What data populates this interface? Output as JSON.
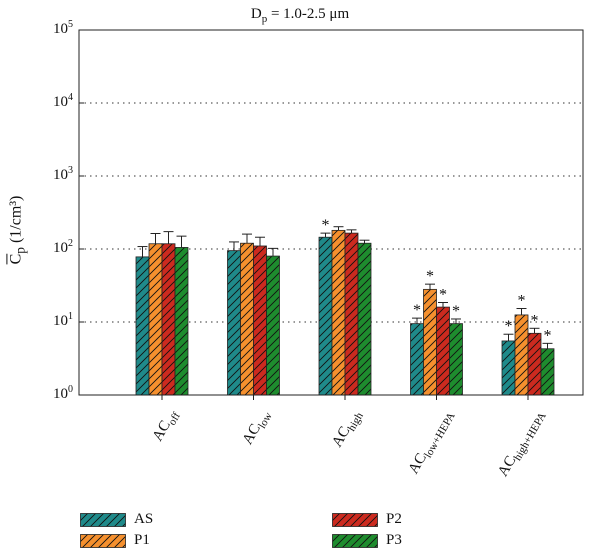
{
  "chart_data": {
    "type": "bar",
    "title": {
      "main": "D",
      "sub": "p",
      "rest": " = 1.0-2.5 μm"
    },
    "ylabel": {
      "over": "C",
      "sub": "p",
      "rest": " (1/cm³)"
    },
    "yscale": "log",
    "ylim": [
      1,
      100000
    ],
    "yticks": [
      {
        "base": "10",
        "exp": "0",
        "value": 1
      },
      {
        "base": "10",
        "exp": "1",
        "value": 10
      },
      {
        "base": "10",
        "exp": "2",
        "value": 100
      },
      {
        "base": "10",
        "exp": "3",
        "value": 1000
      },
      {
        "base": "10",
        "exp": "4",
        "value": 10000
      },
      {
        "base": "10",
        "exp": "5",
        "value": 100000
      }
    ],
    "grid": "horizontal dotted at decades",
    "categories": [
      {
        "main": "AC",
        "sub": "off"
      },
      {
        "main": "AC",
        "sub": "low"
      },
      {
        "main": "AC",
        "sub": "high"
      },
      {
        "main": "AC",
        "sub": "low+HEPA"
      },
      {
        "main": "AC",
        "sub": "high+HEPA"
      }
    ],
    "series": [
      {
        "name": "AS",
        "color": "#1f8a8a",
        "values": [
          78,
          95,
          145,
          9.5,
          5.5
        ],
        "err": [
          30,
          30,
          20,
          1.8,
          1.3
        ],
        "star": [
          false,
          false,
          true,
          true,
          true
        ]
      },
      {
        "name": "P1",
        "color": "#f5902e",
        "values": [
          118,
          120,
          180,
          28,
          12.5
        ],
        "err": [
          45,
          40,
          22,
          5,
          2.8
        ],
        "star": [
          false,
          false,
          false,
          true,
          true
        ]
      },
      {
        "name": "P2",
        "color": "#cc2a1f",
        "values": [
          118,
          110,
          165,
          16,
          7
        ],
        "err": [
          55,
          35,
          18,
          2.5,
          1.2
        ],
        "star": [
          false,
          false,
          false,
          true,
          true
        ]
      },
      {
        "name": "P3",
        "color": "#1e8c2e",
        "values": [
          105,
          80,
          120,
          9.5,
          4.3
        ],
        "err": [
          45,
          22,
          12,
          1.5,
          0.8
        ],
        "star": [
          false,
          false,
          false,
          true,
          true
        ]
      }
    ],
    "annotation_symbol": "*",
    "legend_placement": "bottom, two columns"
  }
}
